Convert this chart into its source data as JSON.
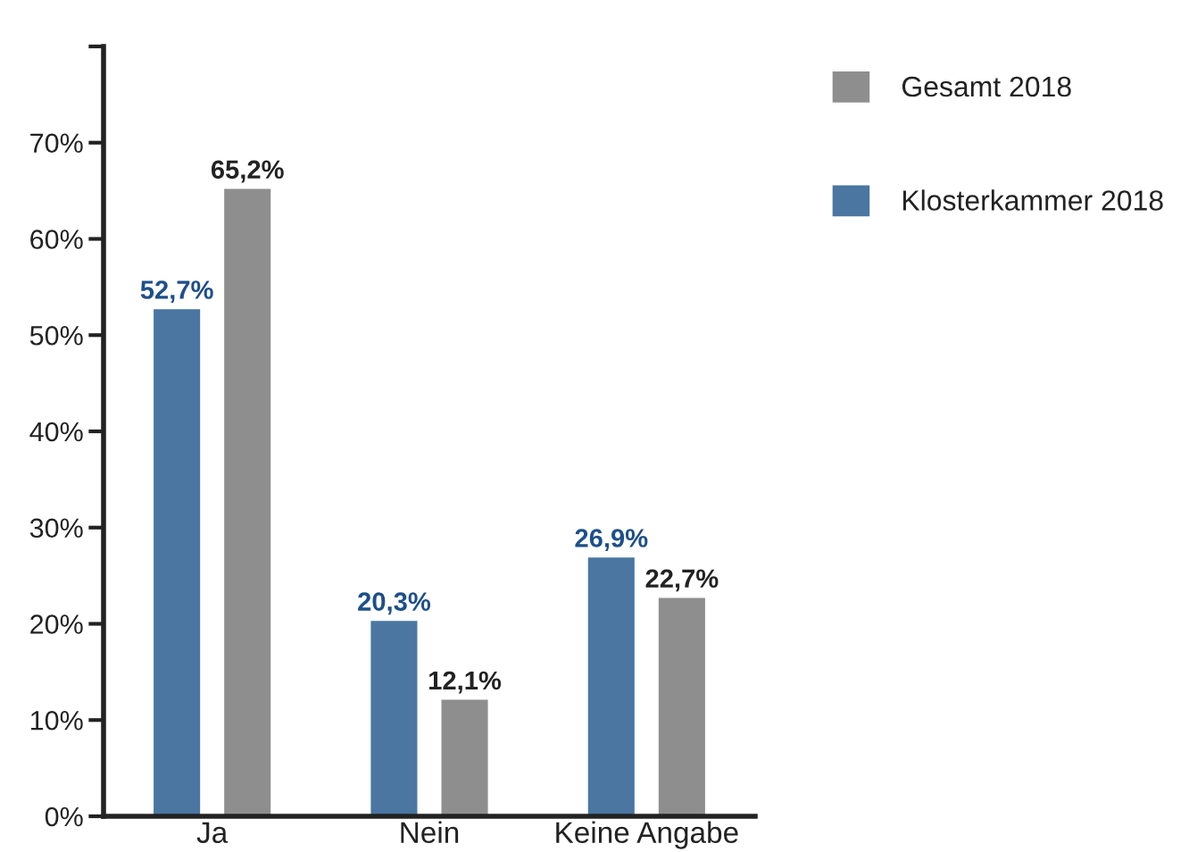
{
  "chart_data": {
    "type": "bar",
    "categories": [
      "Ja",
      "Nein",
      "Keine Angabe"
    ],
    "series": [
      {
        "name": "Klosterkammer 2018",
        "color": "#4a76a1",
        "values": [
          52.7,
          20.3,
          26.9
        ],
        "value_labels": [
          "52,7%",
          "20,3%",
          "26,9%"
        ]
      },
      {
        "name": "Gesamt 2018",
        "color": "#8f8e8f",
        "values": [
          65.2,
          12.1,
          22.7
        ],
        "value_labels": [
          "65,2%",
          "12,1%",
          "22,7%"
        ]
      }
    ],
    "ylim": [
      0,
      80
    ],
    "yticks": [
      {
        "value": 0,
        "label": "0%"
      },
      {
        "value": 10,
        "label": "10%"
      },
      {
        "value": 20,
        "label": "20%"
      },
      {
        "value": 30,
        "label": "30%"
      },
      {
        "value": 40,
        "label": "40%"
      },
      {
        "value": 50,
        "label": "50%"
      },
      {
        "value": 60,
        "label": "60%"
      },
      {
        "value": 70,
        "label": "70%"
      },
      {
        "value": 80,
        "label": null
      }
    ],
    "grid": false,
    "legend": "right"
  }
}
